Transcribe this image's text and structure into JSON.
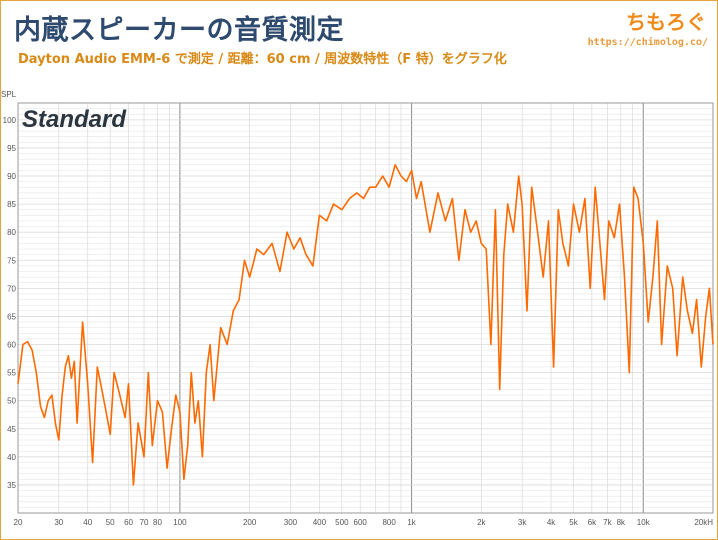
{
  "header": {
    "title": "内蔵スピーカーの音質測定",
    "subtitle": "Dayton Audio EMM-6 で測定 / 距離：60 cm / 周波数特性（F 特）をグラフ化",
    "brand": "ちもろぐ",
    "brand_url": "https://chimolog.co/"
  },
  "colors": {
    "line": "#ff6a00",
    "grid_minor": "#d9d9d9",
    "grid_major": "#8a8a8a",
    "title": "#2e4a6e",
    "subtitle": "#d98a16",
    "brand": "#f08a1a"
  },
  "chart_data": {
    "type": "line",
    "label": "Standard",
    "ylabel": "SPL",
    "xscale": "log",
    "xlim": [
      20,
      20000
    ],
    "ylim": [
      30,
      103
    ],
    "grid": true,
    "x_tick_labels": [
      {
        "x": 20,
        "label": "20"
      },
      {
        "x": 30,
        "label": "30"
      },
      {
        "x": 40,
        "label": "40"
      },
      {
        "x": 50,
        "label": "50"
      },
      {
        "x": 60,
        "label": "60"
      },
      {
        "x": 70,
        "label": "70"
      },
      {
        "x": 80,
        "label": "80"
      },
      {
        "x": 100,
        "label": "100"
      },
      {
        "x": 200,
        "label": "200"
      },
      {
        "x": 300,
        "label": "300"
      },
      {
        "x": 400,
        "label": "400"
      },
      {
        "x": 500,
        "label": "500"
      },
      {
        "x": 600,
        "label": "600"
      },
      {
        "x": 800,
        "label": "800"
      },
      {
        "x": 1000,
        "label": "1k"
      },
      {
        "x": 2000,
        "label": "2k"
      },
      {
        "x": 3000,
        "label": "3k"
      },
      {
        "x": 4000,
        "label": "4k"
      },
      {
        "x": 5000,
        "label": "5k"
      },
      {
        "x": 6000,
        "label": "6k"
      },
      {
        "x": 7000,
        "label": "7k"
      },
      {
        "x": 8000,
        "label": "8k"
      },
      {
        "x": 10000,
        "label": "10k"
      },
      {
        "x": 20000,
        "label": "20kH"
      }
    ],
    "y_ticks": [
      35,
      40,
      45,
      50,
      55,
      60,
      65,
      70,
      75,
      80,
      85,
      90,
      95,
      100
    ],
    "series": [
      {
        "x": [
          20,
          21,
          22,
          23,
          24,
          25,
          26,
          27,
          28,
          29,
          30,
          31,
          32,
          33,
          34,
          35,
          36,
          38,
          40,
          42,
          44,
          46,
          48,
          50,
          52,
          55,
          58,
          60,
          63,
          66,
          70,
          73,
          76,
          80,
          84,
          88,
          92,
          96,
          100,
          104,
          108,
          112,
          116,
          120,
          125,
          130,
          135,
          140,
          150,
          160,
          170,
          180,
          190,
          200,
          215,
          230,
          250,
          270,
          290,
          310,
          330,
          350,
          375,
          400,
          430,
          460,
          500,
          540,
          580,
          620,
          660,
          700,
          750,
          800,
          850,
          900,
          950,
          1000,
          1050,
          1100,
          1200,
          1300,
          1400,
          1500,
          1600,
          1700,
          1800,
          1900,
          2000,
          2100,
          2200,
          2300,
          2400,
          2500,
          2600,
          2750,
          2900,
          3000,
          3150,
          3300,
          3500,
          3700,
          3900,
          4100,
          4300,
          4500,
          4750,
          5000,
          5300,
          5600,
          5900,
          6200,
          6500,
          6800,
          7100,
          7500,
          7900,
          8300,
          8700,
          9100,
          9500,
          10000,
          10500,
          11000,
          11500,
          12000,
          12700,
          13400,
          14000,
          14800,
          15500,
          16300,
          17000,
          17800,
          18600,
          19300,
          20000
        ],
        "y": [
          53,
          60,
          60.5,
          59,
          55,
          49,
          47,
          50,
          51,
          46,
          43,
          51,
          56,
          58,
          54,
          57,
          46,
          64,
          53,
          39,
          56,
          52,
          48,
          44,
          55,
          51,
          47,
          53,
          35,
          46,
          40,
          55,
          42,
          50,
          48,
          38,
          45,
          51,
          48,
          36,
          42,
          55,
          46,
          50,
          40,
          55,
          60,
          50,
          63,
          60,
          66,
          68,
          75,
          72,
          77,
          76,
          78,
          73,
          80,
          77,
          79,
          76,
          74,
          83,
          82,
          85,
          84,
          86,
          87,
          86,
          88,
          88,
          90,
          88,
          92,
          90,
          89,
          91,
          86,
          89,
          80,
          87,
          82,
          86,
          75,
          84,
          80,
          82,
          78,
          77,
          60,
          84,
          52,
          76,
          85,
          80,
          90,
          85,
          66,
          88,
          80,
          72,
          82,
          56,
          84,
          78,
          74,
          85,
          80,
          86,
          70,
          88,
          78,
          68,
          82,
          79,
          85,
          72,
          55,
          88,
          86,
          78,
          64,
          72,
          82,
          60,
          74,
          70,
          58,
          72,
          66,
          62,
          68,
          56,
          65,
          70,
          60
        ]
      }
    ]
  }
}
